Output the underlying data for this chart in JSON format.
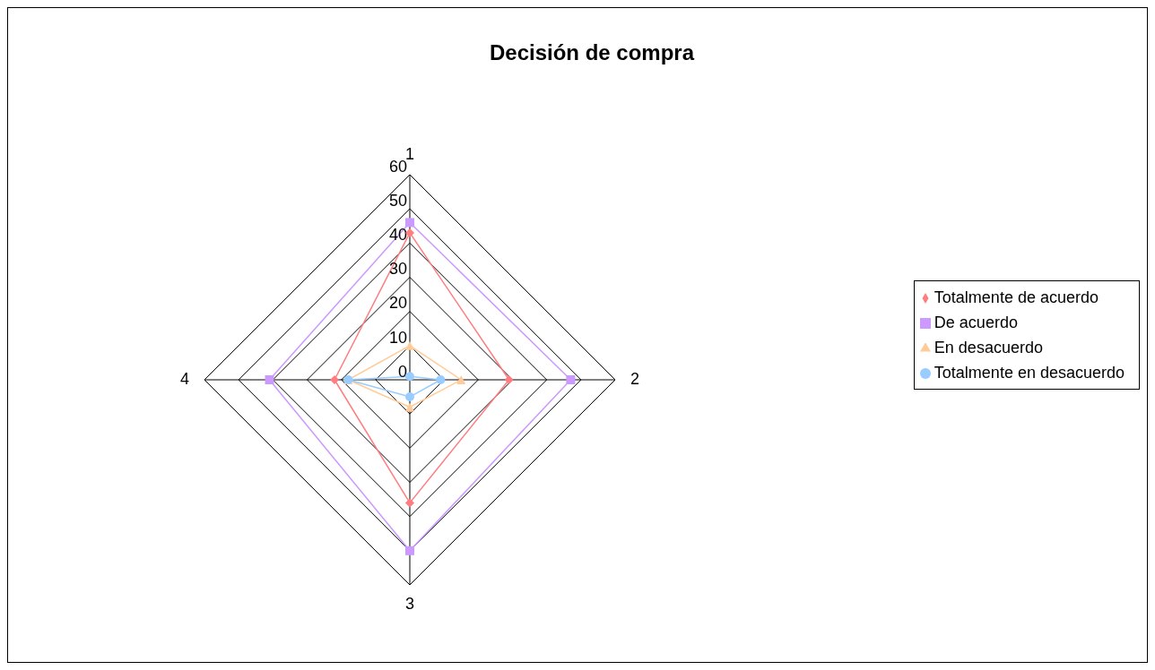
{
  "chart_data": {
    "type": "radar",
    "title": "Decisión de compra",
    "categories": [
      "1",
      "2",
      "3",
      "4"
    ],
    "ylim": [
      0,
      60
    ],
    "yticks": [
      0,
      10,
      20,
      30,
      40,
      50,
      60
    ],
    "grid": true,
    "legend": "right",
    "series": [
      {
        "name": "Totalmente de acuerdo",
        "color": "#ff7c80",
        "marker": "diamond",
        "values": [
          43,
          29,
          36,
          22
        ]
      },
      {
        "name": "De acuerdo",
        "color": "#cc99ff",
        "marker": "square",
        "values": [
          46,
          47,
          50,
          41
        ]
      },
      {
        "name": "En desacuerdo",
        "color": "#ffcc99",
        "marker": "triangle",
        "values": [
          10,
          15,
          8,
          18
        ]
      },
      {
        "name": "Totalmente en desacuerdo",
        "color": "#99ccff",
        "marker": "circle",
        "values": [
          1,
          9,
          5,
          18
        ]
      }
    ]
  }
}
